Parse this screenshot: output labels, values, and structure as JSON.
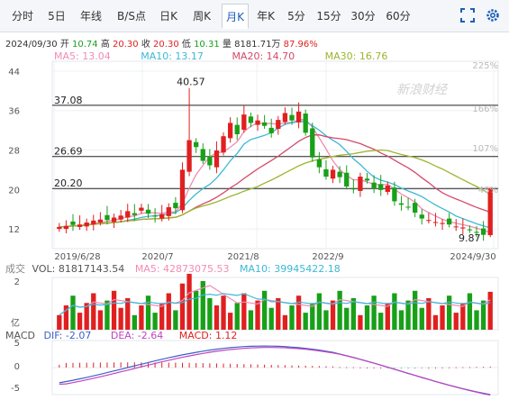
{
  "tabs": [
    {
      "label": "分时",
      "active": false
    },
    {
      "label": "5日",
      "active": false
    },
    {
      "label": "年线",
      "active": false
    },
    {
      "label": "B/S点",
      "active": false
    },
    {
      "label": "日K",
      "active": false
    },
    {
      "label": "周K",
      "active": false
    },
    {
      "label": "月K",
      "active": true
    },
    {
      "label": "年K",
      "active": false
    },
    {
      "label": "5分",
      "active": false
    },
    {
      "label": "15分",
      "active": false
    },
    {
      "label": "30分",
      "active": false
    },
    {
      "label": "60分",
      "active": false
    }
  ],
  "controls": {
    "fullscreen_icon": "fullscreen-icon",
    "settings_icon": "gear-icon"
  },
  "quote": {
    "date": "2024/09/30",
    "open_label": "开",
    "open": "10.74",
    "high_label": "高",
    "high": "20.30",
    "close_label": "收",
    "close": "20.30",
    "low_label": "低",
    "low": "10.31",
    "volume_label": "量",
    "volume": "8181.71万",
    "change_pct": "87.96%"
  },
  "ma_legend": [
    {
      "label": "MA5: 13.04",
      "color": "#f28cb4"
    },
    {
      "label": "MA10: 13.17",
      "color": "#3db8d6"
    },
    {
      "label": "MA20: 14.70",
      "color": "#d44a6a"
    },
    {
      "label": "MA30: 16.76",
      "color": "#9cb52e"
    }
  ],
  "vol_legend": {
    "title": "成交",
    "vol": "VOL: 81817143.54",
    "ma5": "MA5: 42873075.53",
    "ma10": "MA10: 39945422.18"
  },
  "macd_legend": {
    "title": "MACD",
    "dif": "DIF: -2.07",
    "dea": "DEA: -2.64",
    "macd": "MACD: 1.12"
  },
  "watermark": "新浪财经",
  "colors": {
    "up": "#e02020",
    "down": "#18a018",
    "dif": "#3e5fc7",
    "dea": "#c043c0"
  },
  "chart_data": {
    "type": "candlestick",
    "price_ticks": [
      12,
      20,
      28,
      36,
      44
    ],
    "pct_ticks": [
      "225%",
      "166%",
      "107%",
      "48%"
    ],
    "x_labels": [
      "2019/6/28",
      "2020/7",
      "2021/8",
      "2022/9",
      "2024/9/30"
    ],
    "level_lines": [
      {
        "label": "37.08",
        "value": 37.08
      },
      {
        "label": "26.69",
        "value": 26.69
      },
      {
        "label": "20.20",
        "value": 20.2
      }
    ],
    "annotations": [
      {
        "label": "40.57",
        "value": 40.57
      },
      {
        "label": "9.87",
        "value": 9.87
      }
    ],
    "vol_ticks": [
      "2",
      "亿"
    ],
    "macd_ticks": [
      "5",
      "0",
      "-5"
    ]
  }
}
